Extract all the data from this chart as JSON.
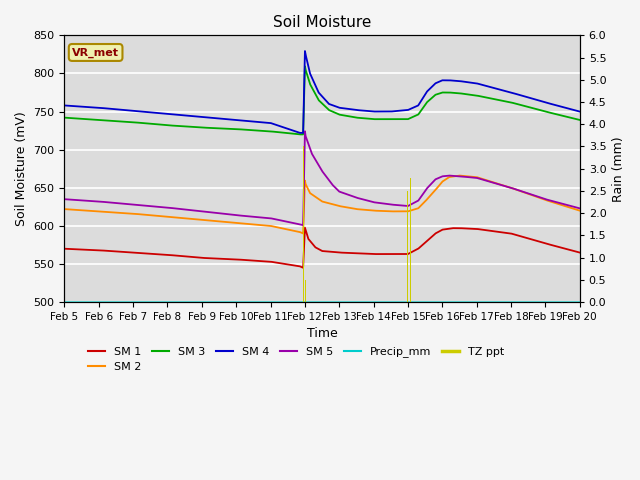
{
  "title": "Soil Moisture",
  "xlabel": "Time",
  "ylabel_left": "Soil Moisture (mV)",
  "ylabel_right": "Rain (mm)",
  "ylim_left": [
    500,
    850
  ],
  "ylim_right": [
    0.0,
    6.0
  ],
  "yticks_left": [
    500,
    550,
    600,
    650,
    700,
    750,
    800,
    850
  ],
  "yticks_right": [
    0.0,
    0.5,
    1.0,
    1.5,
    2.0,
    2.5,
    3.0,
    3.5,
    4.0,
    4.5,
    5.0,
    5.5,
    6.0
  ],
  "xtick_labels": [
    "Feb 5",
    "Feb 6",
    "Feb 7",
    "Feb 8",
    "Feb 9",
    "Feb 10",
    "Feb 11",
    "Feb 12",
    "Feb 13",
    "Feb 14",
    "Feb 15",
    "Feb 16",
    "Feb 17",
    "Feb 18",
    "Feb 19",
    "Feb 20"
  ],
  "colors": {
    "SM1": "#cc0000",
    "SM2": "#ff8c00",
    "SM3": "#00aa00",
    "SM4": "#0000cc",
    "SM5": "#9900aa",
    "Precip_mm": "#00cccc",
    "TZ_ppt": "#cccc00",
    "bg_plot": "#dcdcdc",
    "grid": "#ffffff"
  },
  "legend_label": "VR_met",
  "fig_bg": "#f5f5f5"
}
